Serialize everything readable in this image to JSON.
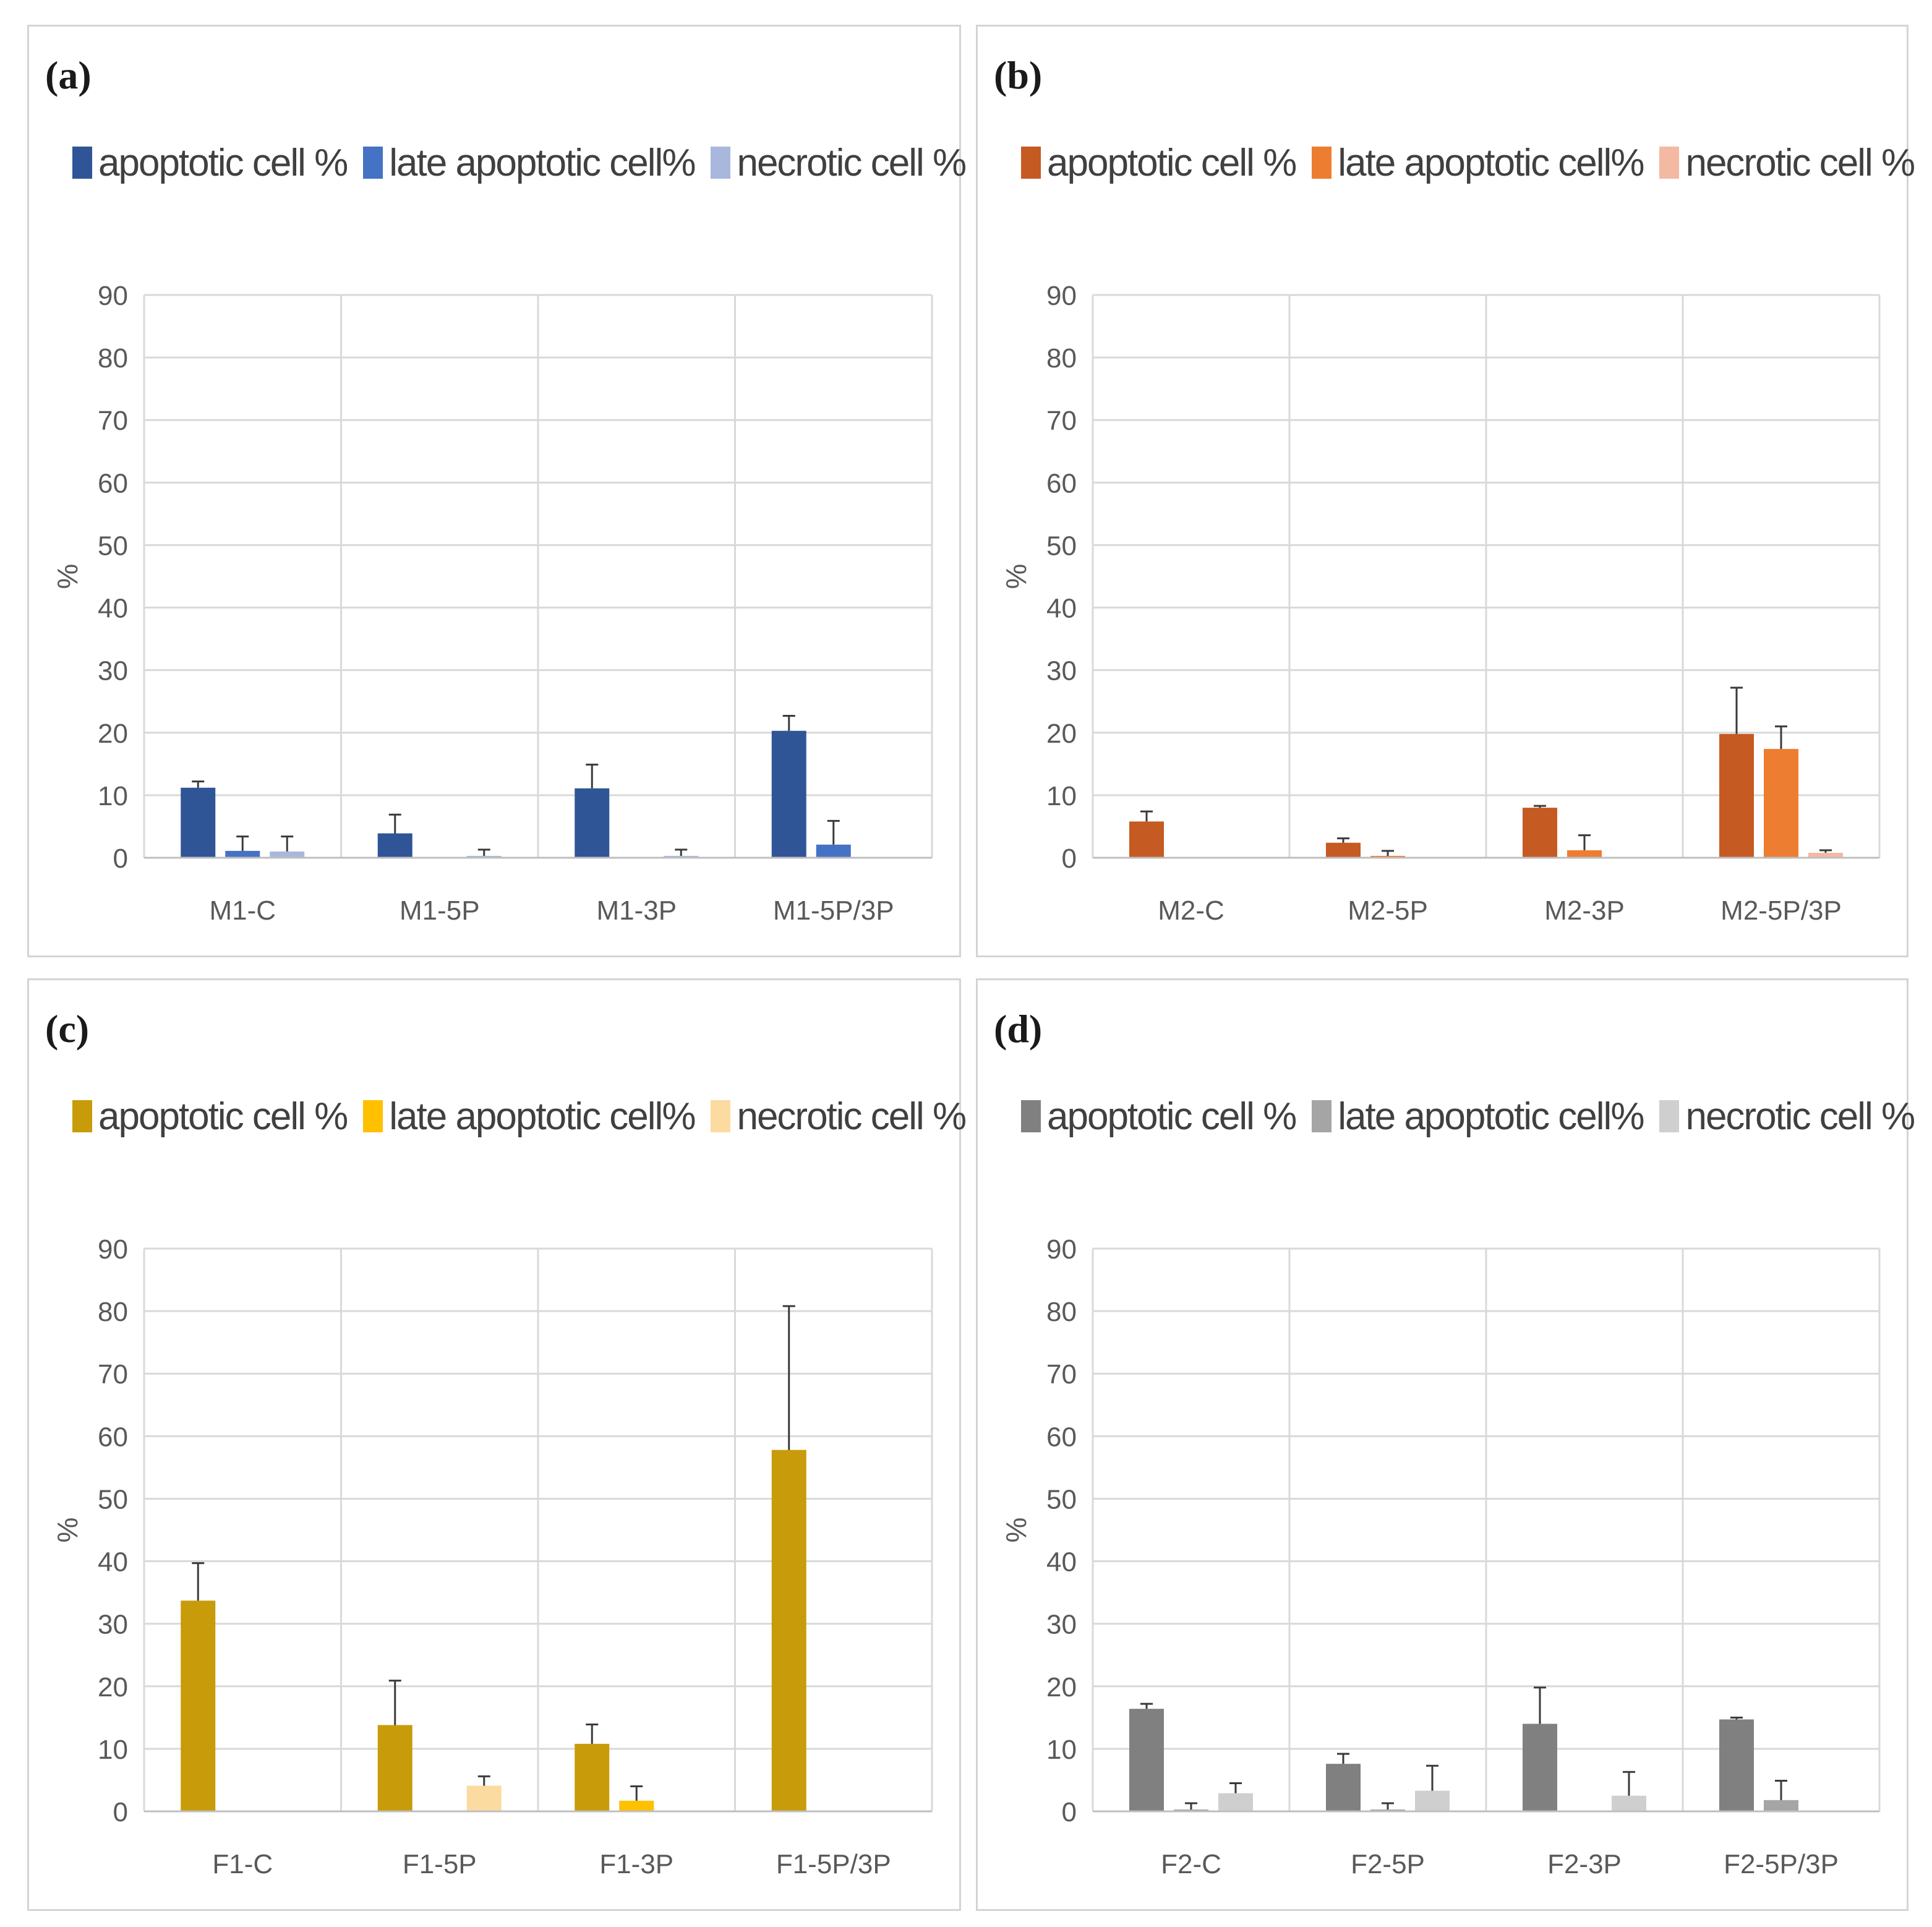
{
  "chart_data": [
    {
      "type": "bar",
      "panel_label": "(a)",
      "legend_position": "top",
      "grid": true,
      "ylabel": "%",
      "xlabel": "",
      "ylim": [
        0,
        90
      ],
      "yticks": [
        0,
        10,
        20,
        30,
        40,
        50,
        60,
        70,
        80,
        90
      ],
      "categories": [
        "M1-C",
        "M1-5P",
        "M1-3P",
        "M1-5P/3P"
      ],
      "series": [
        {
          "name": "apoptotic cell %",
          "color": "#2f5597",
          "values": [
            11.2,
            3.9,
            11.1,
            20.3
          ],
          "errors": [
            1.0,
            3.0,
            3.8,
            2.4
          ]
        },
        {
          "name": "late apoptotic cell%",
          "color": "#4472c4",
          "values": [
            1.1,
            0,
            0,
            2.1
          ],
          "errors": [
            2.3,
            0,
            0,
            3.8
          ]
        },
        {
          "name": "necrotic cell %",
          "color": "#a9b7dc",
          "values": [
            1.0,
            0.3,
            0.3,
            0
          ],
          "errors": [
            2.4,
            1.0,
            1.0,
            0
          ]
        }
      ]
    },
    {
      "type": "bar",
      "panel_label": "(b)",
      "legend_position": "top",
      "grid": true,
      "ylabel": "%",
      "xlabel": "",
      "ylim": [
        0,
        90
      ],
      "yticks": [
        0,
        10,
        20,
        30,
        40,
        50,
        60,
        70,
        80,
        90
      ],
      "categories": [
        "M2-C",
        "M2-5P",
        "M2-3P",
        "M2-5P/3P"
      ],
      "series": [
        {
          "name": "apoptotic cell %",
          "color": "#c55a22",
          "values": [
            5.8,
            2.4,
            8.0,
            19.8
          ],
          "errors": [
            1.6,
            0.7,
            0.3,
            7.4
          ]
        },
        {
          "name": "late apoptotic cell%",
          "color": "#ed7d31",
          "values": [
            0,
            0.3,
            1.2,
            17.4
          ],
          "errors": [
            0,
            0.8,
            2.4,
            3.6
          ]
        },
        {
          "name": "necrotic cell %",
          "color": "#f4b9a3",
          "values": [
            0,
            0,
            0,
            0.8
          ],
          "errors": [
            0,
            0,
            0,
            0.4
          ]
        }
      ]
    },
    {
      "type": "bar",
      "panel_label": "(c)",
      "legend_position": "top",
      "grid": true,
      "ylabel": "%",
      "xlabel": "",
      "ylim": [
        0,
        90
      ],
      "yticks": [
        0,
        10,
        20,
        30,
        40,
        50,
        60,
        70,
        80,
        90
      ],
      "categories": [
        "F1-C",
        "F1-5P",
        "F1-3P",
        "F1-5P/3P"
      ],
      "series": [
        {
          "name": "apoptotic cell %",
          "color": "#c89b0a",
          "values": [
            33.7,
            13.8,
            10.8,
            57.8
          ],
          "errors": [
            6.0,
            7.1,
            3.1,
            23.0
          ]
        },
        {
          "name": "late apoptotic cell%",
          "color": "#ffc000",
          "values": [
            0,
            0,
            1.7,
            0
          ],
          "errors": [
            0,
            0,
            2.3,
            0
          ]
        },
        {
          "name": "necrotic cell %",
          "color": "#fcdba0",
          "values": [
            0,
            4.1,
            0,
            0
          ],
          "errors": [
            0,
            1.5,
            0,
            0
          ]
        }
      ]
    },
    {
      "type": "bar",
      "panel_label": "(d)",
      "legend_position": "top",
      "grid": true,
      "ylabel": "%",
      "xlabel": "",
      "ylim": [
        0,
        90
      ],
      "yticks": [
        0,
        10,
        20,
        30,
        40,
        50,
        60,
        70,
        80,
        90
      ],
      "categories": [
        "F2-C",
        "F2-5P",
        "F2-3P",
        "F2-5P/3P"
      ],
      "series": [
        {
          "name": "apoptotic cell %",
          "color": "#808080",
          "values": [
            16.4,
            7.6,
            14.0,
            14.7
          ],
          "errors": [
            0.8,
            1.6,
            5.8,
            0.3
          ]
        },
        {
          "name": "late apoptotic cell%",
          "color": "#a5a5a5",
          "values": [
            0.3,
            0.3,
            0,
            1.8
          ],
          "errors": [
            1.0,
            1.0,
            0,
            3.1
          ]
        },
        {
          "name": "necrotic cell %",
          "color": "#cfcfcf",
          "values": [
            2.9,
            3.3,
            2.5,
            0
          ],
          "errors": [
            1.6,
            4.0,
            3.8,
            0
          ]
        }
      ]
    }
  ]
}
